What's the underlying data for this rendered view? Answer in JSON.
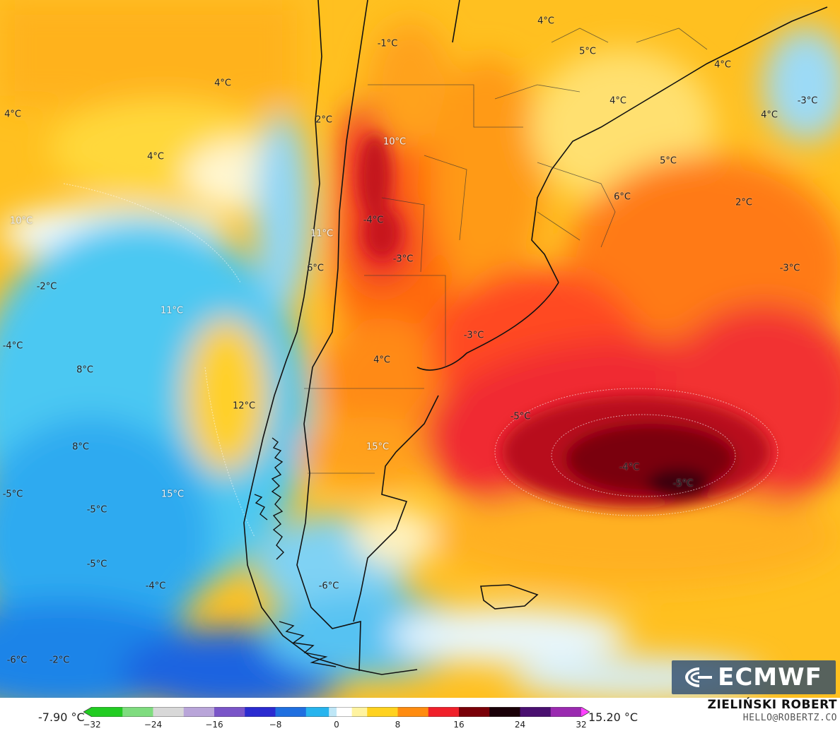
{
  "map": {
    "temperature_labels": [
      {
        "text": "-1°C"
      },
      {
        "text": "4°C"
      },
      {
        "text": "5°C"
      },
      {
        "text": "4°C"
      },
      {
        "text": "4°C"
      },
      {
        "text": "-3°C"
      },
      {
        "text": "4°C"
      },
      {
        "text": "4°C"
      },
      {
        "text": "2°C"
      },
      {
        "text": "4°C"
      },
      {
        "text": "4°C"
      },
      {
        "text": "10°C"
      },
      {
        "text": "5°C"
      },
      {
        "text": "6°C"
      },
      {
        "text": "2°C"
      },
      {
        "text": "10°C"
      },
      {
        "text": "-4°C"
      },
      {
        "text": "11°C"
      },
      {
        "text": "-3°C"
      },
      {
        "text": "6°C"
      },
      {
        "text": "-3°C"
      },
      {
        "text": "-2°C"
      },
      {
        "text": "11°C"
      },
      {
        "text": "-3°C"
      },
      {
        "text": "-4°C"
      },
      {
        "text": "8°C"
      },
      {
        "text": "4°C"
      },
      {
        "text": "12°C"
      },
      {
        "text": "-5°C"
      },
      {
        "text": "8°C"
      },
      {
        "text": "15°C"
      },
      {
        "text": "-4°C"
      },
      {
        "text": "-5°C"
      },
      {
        "text": "15°C"
      },
      {
        "text": "-5°C"
      },
      {
        "text": "-5°C"
      },
      {
        "text": "-5°C"
      },
      {
        "text": "-4°C"
      },
      {
        "text": "-6°C"
      },
      {
        "text": "-6°C"
      },
      {
        "text": "-2°C"
      }
    ]
  },
  "logo": {
    "text": "ECMWF"
  },
  "legend": {
    "min_value": "-7.90 °C",
    "max_value": "15.20 °C",
    "ticks": [
      "−32",
      "−24",
      "−16",
      "−8",
      "0",
      "8",
      "16",
      "24",
      "32"
    ],
    "range": [
      -32,
      32
    ],
    "stops": [
      {
        "v": -32,
        "color": "#22cc22"
      },
      {
        "v": -28,
        "color": "#7fdc7f"
      },
      {
        "v": -24,
        "color": "#d8d8d8"
      },
      {
        "v": -20,
        "color": "#b9a5d9"
      },
      {
        "v": -16,
        "color": "#7a55c8"
      },
      {
        "v": -12,
        "color": "#2b2bd0"
      },
      {
        "v": -8,
        "color": "#1f6fe0"
      },
      {
        "v": -4,
        "color": "#27b4ee"
      },
      {
        "v": -1,
        "color": "#bfe7f7"
      },
      {
        "v": 0,
        "color": "#ffffff"
      },
      {
        "v": 2,
        "color": "#fff3a0"
      },
      {
        "v": 4,
        "color": "#ffd21f"
      },
      {
        "v": 8,
        "color": "#ff8c10"
      },
      {
        "v": 12,
        "color": "#f0202a"
      },
      {
        "v": 16,
        "color": "#7a0008"
      },
      {
        "v": 20,
        "color": "#1a0008"
      },
      {
        "v": 24,
        "color": "#4a1070"
      },
      {
        "v": 28,
        "color": "#9a2ab0"
      },
      {
        "v": 32,
        "color": "#ff40ff"
      }
    ]
  },
  "credits": {
    "author": "ZIELIŃSKI ROBERT",
    "email": "HELLO@ROBERTZ.CO"
  }
}
